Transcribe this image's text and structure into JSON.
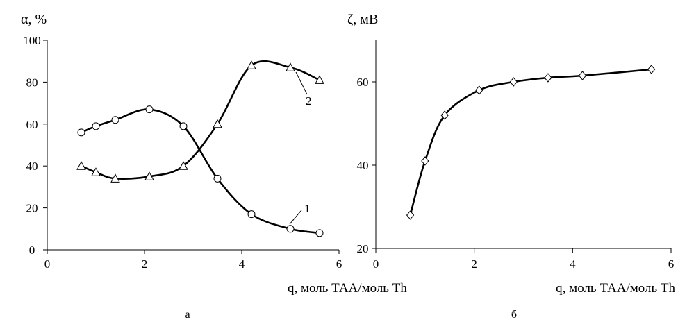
{
  "chart_data": [
    {
      "type": "line",
      "ylabel": "α, %",
      "xlabel": "q, моль ТАА/моль Th",
      "caption": "а",
      "xlim": [
        0,
        6
      ],
      "ylim": [
        0,
        100
      ],
      "x_ticks": [
        "0",
        "2",
        "4",
        "6"
      ],
      "y_ticks": [
        "0",
        "20",
        "40",
        "60",
        "80",
        "100"
      ],
      "series": [
        {
          "name": "1",
          "marker": "circle",
          "x": [
            0.7,
            1.0,
            1.4,
            2.1,
            2.8,
            3.5,
            4.2,
            5.0,
            5.6
          ],
          "y": [
            56,
            59,
            62,
            67,
            59,
            34,
            17,
            10,
            8
          ]
        },
        {
          "name": "2",
          "marker": "triangle",
          "x": [
            0.7,
            1.0,
            1.4,
            2.1,
            2.8,
            3.5,
            4.2,
            5.0,
            5.6
          ],
          "y": [
            40,
            37,
            34,
            35,
            40,
            60,
            88,
            87,
            81
          ]
        }
      ]
    },
    {
      "type": "line",
      "ylabel": "ζ, мВ",
      "xlabel": "q, моль ТАА/моль Th",
      "caption": "б",
      "xlim": [
        0,
        6
      ],
      "ylim": [
        20,
        70
      ],
      "x_ticks": [
        "0",
        "2",
        "4",
        "6"
      ],
      "y_ticks": [
        "20",
        "40",
        "60"
      ],
      "series": [
        {
          "marker": "diamond",
          "x": [
            0.7,
            1.0,
            1.4,
            2.1,
            2.8,
            3.5,
            4.2,
            5.6
          ],
          "y": [
            28,
            41,
            52,
            58,
            60,
            61,
            61.5,
            63
          ]
        }
      ]
    }
  ]
}
